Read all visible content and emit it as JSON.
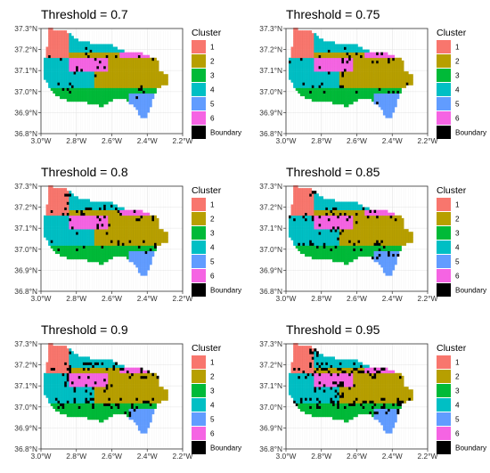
{
  "chart_data": {
    "type": "map",
    "panel_title_prefix": "Threshold = ",
    "legend": {
      "title": "Cluster",
      "entries": [
        {
          "label": "1",
          "color": "#F8766D"
        },
        {
          "label": "2",
          "color": "#B79F00"
        },
        {
          "label": "3",
          "color": "#00BA38"
        },
        {
          "label": "4",
          "color": "#00BFC4"
        },
        {
          "label": "5",
          "color": "#619CFF"
        },
        {
          "label": "6",
          "color": "#F564E3"
        },
        {
          "label": "Boundary",
          "color": "#000000"
        }
      ]
    },
    "xlim": [
      -3.0,
      -2.2
    ],
    "ylim": [
      36.8,
      37.3
    ],
    "x_ticks": [
      "3.0°W",
      "2.8°W",
      "2.6°W",
      "2.4°W",
      "2.2°W"
    ],
    "y_ticks": [
      "36.8°N",
      "36.9°N",
      "37.0°N",
      "37.1°N",
      "37.2°N",
      "37.3°N"
    ],
    "grid": true,
    "panels": [
      {
        "threshold": "0.7",
        "boundary_cells": 30
      },
      {
        "threshold": "0.75",
        "boundary_cells": 40
      },
      {
        "threshold": "0.8",
        "boundary_cells": 55
      },
      {
        "threshold": "0.85",
        "boundary_cells": 70
      },
      {
        "threshold": "0.9",
        "boundary_cells": 95
      },
      {
        "threshold": "0.95",
        "boundary_cells": 130
      }
    ]
  }
}
